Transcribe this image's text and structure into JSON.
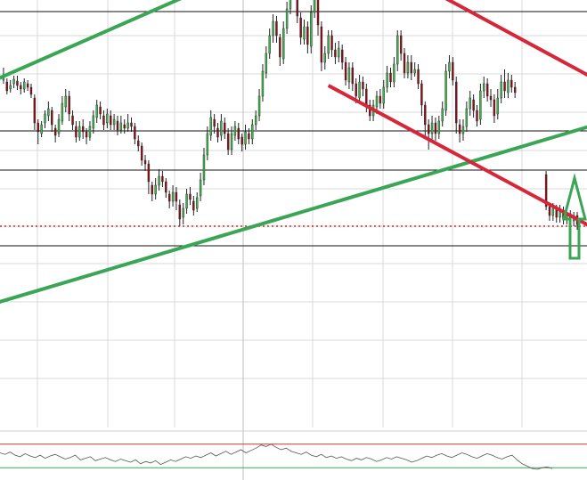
{
  "chart_data": {
    "type": "candlestick",
    "title": "",
    "xlabel": "",
    "ylabel": "",
    "grid": true,
    "axis_labels_visible": false,
    "colors": {
      "background": "#ffffff",
      "grid": "#d8d8d8",
      "level_line": "#111111",
      "price_dotted": "#cc2a2a",
      "candle_up": "#3cb44b",
      "candle_down": "#8b0f1a",
      "support_trendline": "#3aa655",
      "resistance_trendline": "#d6263a",
      "arrow": "#3aa655",
      "oscillator_line": "#555555",
      "oscillator_upper": "#c0392b",
      "oscillator_lower": "#3aa655"
    },
    "main_panel": {
      "y_range": [
        0,
        480
      ],
      "horizontal_levels": [
        467,
        333,
        289,
        204
      ],
      "current_price_level": 226,
      "candles": [
        {
          "o": 390,
          "c": 396,
          "h": 404,
          "l": 386
        },
        {
          "o": 388,
          "c": 378,
          "h": 392,
          "l": 374
        },
        {
          "o": 380,
          "c": 384,
          "h": 390,
          "l": 376
        },
        {
          "o": 386,
          "c": 391,
          "h": 395,
          "l": 381
        },
        {
          "o": 389,
          "c": 384,
          "h": 395,
          "l": 379
        },
        {
          "o": 384,
          "c": 380,
          "h": 388,
          "l": 374
        },
        {
          "o": 380,
          "c": 388,
          "h": 392,
          "l": 376
        },
        {
          "o": 386,
          "c": 382,
          "h": 390,
          "l": 378
        },
        {
          "o": 382,
          "c": 374,
          "h": 386,
          "l": 370
        },
        {
          "o": 370,
          "c": 342,
          "h": 374,
          "l": 334
        },
        {
          "o": 342,
          "c": 332,
          "h": 346,
          "l": 318
        },
        {
          "o": 330,
          "c": 340,
          "h": 344,
          "l": 326
        },
        {
          "o": 342,
          "c": 352,
          "h": 356,
          "l": 336
        },
        {
          "o": 350,
          "c": 358,
          "h": 366,
          "l": 344
        },
        {
          "o": 356,
          "c": 340,
          "h": 360,
          "l": 332
        },
        {
          "o": 336,
          "c": 328,
          "h": 340,
          "l": 320
        },
        {
          "o": 330,
          "c": 346,
          "h": 352,
          "l": 326
        },
        {
          "o": 344,
          "c": 364,
          "h": 372,
          "l": 340
        },
        {
          "o": 360,
          "c": 372,
          "h": 380,
          "l": 354
        },
        {
          "o": 372,
          "c": 352,
          "h": 378,
          "l": 344
        },
        {
          "o": 350,
          "c": 340,
          "h": 356,
          "l": 334
        },
        {
          "o": 338,
          "c": 326,
          "h": 344,
          "l": 320
        },
        {
          "o": 326,
          "c": 338,
          "h": 344,
          "l": 322
        },
        {
          "o": 338,
          "c": 332,
          "h": 346,
          "l": 324
        },
        {
          "o": 332,
          "c": 326,
          "h": 336,
          "l": 318
        },
        {
          "o": 326,
          "c": 338,
          "h": 344,
          "l": 322
        },
        {
          "o": 336,
          "c": 350,
          "h": 356,
          "l": 330
        },
        {
          "o": 348,
          "c": 362,
          "h": 368,
          "l": 342
        },
        {
          "o": 360,
          "c": 352,
          "h": 366,
          "l": 346
        },
        {
          "o": 350,
          "c": 340,
          "h": 356,
          "l": 334
        },
        {
          "o": 342,
          "c": 352,
          "h": 358,
          "l": 336
        },
        {
          "o": 350,
          "c": 340,
          "h": 356,
          "l": 334
        },
        {
          "o": 340,
          "c": 346,
          "h": 352,
          "l": 334
        },
        {
          "o": 344,
          "c": 334,
          "h": 350,
          "l": 328
        },
        {
          "o": 334,
          "c": 342,
          "h": 350,
          "l": 330
        },
        {
          "o": 340,
          "c": 336,
          "h": 346,
          "l": 330
        },
        {
          "o": 336,
          "c": 342,
          "h": 352,
          "l": 332
        },
        {
          "o": 342,
          "c": 338,
          "h": 348,
          "l": 332
        },
        {
          "o": 338,
          "c": 324,
          "h": 342,
          "l": 318
        },
        {
          "o": 322,
          "c": 316,
          "h": 328,
          "l": 310
        },
        {
          "o": 316,
          "c": 300,
          "h": 320,
          "l": 294
        },
        {
          "o": 300,
          "c": 296,
          "h": 306,
          "l": 288
        },
        {
          "o": 296,
          "c": 276,
          "h": 300,
          "l": 262
        },
        {
          "o": 272,
          "c": 262,
          "h": 276,
          "l": 254
        },
        {
          "o": 262,
          "c": 272,
          "h": 280,
          "l": 256
        },
        {
          "o": 272,
          "c": 282,
          "h": 290,
          "l": 266
        },
        {
          "o": 282,
          "c": 276,
          "h": 288,
          "l": 270
        },
        {
          "o": 276,
          "c": 264,
          "h": 280,
          "l": 258
        },
        {
          "o": 262,
          "c": 254,
          "h": 266,
          "l": 246
        },
        {
          "o": 254,
          "c": 264,
          "h": 272,
          "l": 248
        },
        {
          "o": 264,
          "c": 254,
          "h": 270,
          "l": 244
        },
        {
          "o": 250,
          "c": 234,
          "h": 256,
          "l": 226
        },
        {
          "o": 236,
          "c": 246,
          "h": 252,
          "l": 228
        },
        {
          "o": 246,
          "c": 262,
          "h": 268,
          "l": 240
        },
        {
          "o": 262,
          "c": 256,
          "h": 270,
          "l": 250
        },
        {
          "o": 254,
          "c": 244,
          "h": 260,
          "l": 238
        },
        {
          "o": 246,
          "c": 258,
          "h": 264,
          "l": 242
        },
        {
          "o": 260,
          "c": 278,
          "h": 286,
          "l": 254
        },
        {
          "o": 278,
          "c": 306,
          "h": 314,
          "l": 272
        },
        {
          "o": 306,
          "c": 330,
          "h": 338,
          "l": 300
        },
        {
          "o": 328,
          "c": 348,
          "h": 356,
          "l": 322
        },
        {
          "o": 346,
          "c": 338,
          "h": 352,
          "l": 330
        },
        {
          "o": 336,
          "c": 326,
          "h": 342,
          "l": 320
        },
        {
          "o": 328,
          "c": 344,
          "h": 352,
          "l": 322
        },
        {
          "o": 342,
          "c": 330,
          "h": 348,
          "l": 324
        },
        {
          "o": 330,
          "c": 312,
          "h": 336,
          "l": 306
        },
        {
          "o": 312,
          "c": 330,
          "h": 338,
          "l": 306
        },
        {
          "o": 328,
          "c": 338,
          "h": 344,
          "l": 322
        },
        {
          "o": 336,
          "c": 324,
          "h": 342,
          "l": 318
        },
        {
          "o": 326,
          "c": 318,
          "h": 330,
          "l": 310
        },
        {
          "o": 318,
          "c": 332,
          "h": 340,
          "l": 312
        },
        {
          "o": 330,
          "c": 324,
          "h": 336,
          "l": 318
        },
        {
          "o": 324,
          "c": 340,
          "h": 346,
          "l": 318
        },
        {
          "o": 340,
          "c": 350,
          "h": 356,
          "l": 334
        },
        {
          "o": 350,
          "c": 372,
          "h": 380,
          "l": 344
        },
        {
          "o": 372,
          "c": 400,
          "h": 408,
          "l": 366
        },
        {
          "o": 398,
          "c": 420,
          "h": 428,
          "l": 392
        },
        {
          "o": 420,
          "c": 440,
          "h": 448,
          "l": 414
        },
        {
          "o": 440,
          "c": 456,
          "h": 464,
          "l": 432
        },
        {
          "o": 456,
          "c": 440,
          "h": 462,
          "l": 432
        },
        {
          "o": 438,
          "c": 416,
          "h": 442,
          "l": 406
        },
        {
          "o": 414,
          "c": 448,
          "h": 456,
          "l": 408
        },
        {
          "o": 448,
          "c": 470,
          "h": 478,
          "l": 442
        },
        {
          "o": 470,
          "c": 512,
          "h": 520,
          "l": 464
        },
        {
          "o": 512,
          "c": 496,
          "h": 530,
          "l": 488
        },
        {
          "o": 494,
          "c": 462,
          "h": 500,
          "l": 454
        },
        {
          "o": 460,
          "c": 438,
          "h": 466,
          "l": 430
        },
        {
          "o": 436,
          "c": 450,
          "h": 458,
          "l": 430
        },
        {
          "o": 450,
          "c": 430,
          "h": 456,
          "l": 420
        },
        {
          "o": 428,
          "c": 466,
          "h": 474,
          "l": 420
        },
        {
          "o": 466,
          "c": 490,
          "h": 500,
          "l": 460
        },
        {
          "o": 490,
          "c": 452,
          "h": 496,
          "l": 440
        },
        {
          "o": 450,
          "c": 410,
          "h": 456,
          "l": 400
        },
        {
          "o": 410,
          "c": 420,
          "h": 428,
          "l": 402
        },
        {
          "o": 420,
          "c": 440,
          "h": 446,
          "l": 414
        },
        {
          "o": 440,
          "c": 424,
          "h": 446,
          "l": 416
        },
        {
          "o": 424,
          "c": 416,
          "h": 432,
          "l": 408
        },
        {
          "o": 416,
          "c": 426,
          "h": 434,
          "l": 410
        },
        {
          "o": 424,
          "c": 410,
          "h": 430,
          "l": 402
        },
        {
          "o": 410,
          "c": 390,
          "h": 416,
          "l": 384
        },
        {
          "o": 388,
          "c": 404,
          "h": 410,
          "l": 380
        },
        {
          "o": 404,
          "c": 386,
          "h": 410,
          "l": 378
        },
        {
          "o": 386,
          "c": 372,
          "h": 392,
          "l": 364
        },
        {
          "o": 370,
          "c": 388,
          "h": 396,
          "l": 364
        },
        {
          "o": 388,
          "c": 380,
          "h": 394,
          "l": 372
        },
        {
          "o": 380,
          "c": 362,
          "h": 386,
          "l": 354
        },
        {
          "o": 362,
          "c": 350,
          "h": 368,
          "l": 344
        },
        {
          "o": 350,
          "c": 362,
          "h": 368,
          "l": 344
        },
        {
          "o": 360,
          "c": 372,
          "h": 378,
          "l": 352
        },
        {
          "o": 372,
          "c": 364,
          "h": 380,
          "l": 358
        },
        {
          "o": 364,
          "c": 382,
          "h": 390,
          "l": 358
        },
        {
          "o": 382,
          "c": 398,
          "h": 406,
          "l": 376
        },
        {
          "o": 398,
          "c": 388,
          "h": 404,
          "l": 382
        },
        {
          "o": 388,
          "c": 408,
          "h": 416,
          "l": 382
        },
        {
          "o": 408,
          "c": 440,
          "h": 446,
          "l": 400
        },
        {
          "o": 440,
          "c": 420,
          "h": 446,
          "l": 412
        },
        {
          "o": 420,
          "c": 398,
          "h": 426,
          "l": 392
        },
        {
          "o": 398,
          "c": 410,
          "h": 418,
          "l": 392
        },
        {
          "o": 410,
          "c": 398,
          "h": 418,
          "l": 390
        },
        {
          "o": 398,
          "c": 402,
          "h": 410,
          "l": 394
        },
        {
          "o": 402,
          "c": 386,
          "h": 408,
          "l": 380
        },
        {
          "o": 386,
          "c": 362,
          "h": 390,
          "l": 350
        },
        {
          "o": 362,
          "c": 340,
          "h": 366,
          "l": 326
        },
        {
          "o": 340,
          "c": 330,
          "h": 346,
          "l": 312
        },
        {
          "o": 330,
          "c": 342,
          "h": 350,
          "l": 322
        },
        {
          "o": 342,
          "c": 330,
          "h": 348,
          "l": 322
        },
        {
          "o": 330,
          "c": 344,
          "h": 350,
          "l": 324
        },
        {
          "o": 344,
          "c": 358,
          "h": 366,
          "l": 338
        },
        {
          "o": 356,
          "c": 400,
          "h": 408,
          "l": 350
        },
        {
          "o": 400,
          "c": 410,
          "h": 418,
          "l": 392
        },
        {
          "o": 410,
          "c": 390,
          "h": 416,
          "l": 384
        },
        {
          "o": 388,
          "c": 342,
          "h": 394,
          "l": 330
        },
        {
          "o": 340,
          "c": 330,
          "h": 346,
          "l": 320
        },
        {
          "o": 330,
          "c": 338,
          "h": 346,
          "l": 322
        },
        {
          "o": 338,
          "c": 358,
          "h": 366,
          "l": 332
        },
        {
          "o": 358,
          "c": 370,
          "h": 378,
          "l": 350
        },
        {
          "o": 368,
          "c": 356,
          "h": 374,
          "l": 348
        },
        {
          "o": 356,
          "c": 344,
          "h": 362,
          "l": 338
        },
        {
          "o": 346,
          "c": 378,
          "h": 386,
          "l": 340
        },
        {
          "o": 378,
          "c": 386,
          "h": 394,
          "l": 370
        },
        {
          "o": 386,
          "c": 372,
          "h": 392,
          "l": 366
        },
        {
          "o": 372,
          "c": 368,
          "h": 380,
          "l": 360
        },
        {
          "o": 368,
          "c": 350,
          "h": 374,
          "l": 342
        },
        {
          "o": 352,
          "c": 370,
          "h": 380,
          "l": 346
        },
        {
          "o": 370,
          "c": 388,
          "h": 396,
          "l": 364
        },
        {
          "o": 388,
          "c": 378,
          "h": 402,
          "l": 370
        },
        {
          "o": 376,
          "c": 390,
          "h": 398,
          "l": 370
        },
        {
          "o": 390,
          "c": 382,
          "h": 396,
          "l": 376
        },
        {
          "o": 382,
          "c": 376,
          "h": 388,
          "l": 370
        },
        {
          "o": 284,
          "c": 248,
          "h": 288,
          "l": 244
        },
        {
          "o": 248,
          "c": 238,
          "h": 252,
          "l": 232
        },
        {
          "o": 238,
          "c": 246,
          "h": 252,
          "l": 232
        },
        {
          "o": 246,
          "c": 236,
          "h": 250,
          "l": 230
        },
        {
          "o": 236,
          "c": 244,
          "h": 250,
          "l": 230
        },
        {
          "o": 244,
          "c": 234,
          "h": 248,
          "l": 228
        },
        {
          "o": 234,
          "c": 240,
          "h": 246,
          "l": 228
        },
        {
          "o": 240,
          "c": 232,
          "h": 244,
          "l": 226
        },
        {
          "o": 232,
          "c": 238,
          "h": 242,
          "l": 226
        },
        {
          "o": 238,
          "c": 228,
          "h": 242,
          "l": 222
        }
      ],
      "gap_after_index": 148,
      "trendlines": [
        {
          "name": "",
          "color_key": "support_trendline",
          "from": [
            -2,
            391
          ],
          "to": [
            82,
            534
          ]
        },
        {
          "name": "",
          "color_key": "support_trendline",
          "from": [
            -2,
            140
          ],
          "to": [
            186,
            357
          ]
        },
        {
          "name": "",
          "color_key": "resistance_trendline",
          "from": [
            105,
            530
          ],
          "to": [
            187,
            358
          ]
        },
        {
          "name": "",
          "color_key": "resistance_trendline",
          "from": [
            94,
            384
          ],
          "to": [
            187,
            190
          ]
        }
      ],
      "arrow_direction": "up"
    },
    "oscillator_panel": {
      "y_range": [
        0,
        100
      ],
      "upper_level": 80,
      "lower_level": 20,
      "values": [
        58,
        54,
        60,
        52,
        48,
        56,
        50,
        46,
        52,
        44,
        50,
        54,
        48,
        42,
        46,
        52,
        40,
        44,
        48,
        38,
        42,
        46,
        40,
        36,
        42,
        38,
        34,
        40,
        30,
        36,
        32,
        38,
        28,
        34,
        40,
        36,
        42,
        48,
        44,
        50,
        46,
        52,
        58,
        50,
        56,
        62,
        54,
        60,
        66,
        58,
        64,
        70,
        78,
        74,
        80,
        72,
        66,
        70,
        62,
        58,
        54,
        60,
        52,
        48,
        54,
        46,
        50,
        44,
        48,
        42,
        38,
        44,
        40,
        46,
        42,
        36,
        40,
        46,
        42,
        48,
        44,
        40,
        34,
        38,
        44,
        50,
        46,
        52,
        56,
        50,
        46,
        52,
        58,
        54,
        48,
        44,
        50,
        56,
        52,
        46,
        42,
        48,
        52,
        40,
        30,
        24,
        18,
        16,
        20,
        22,
        18
      ]
    }
  }
}
